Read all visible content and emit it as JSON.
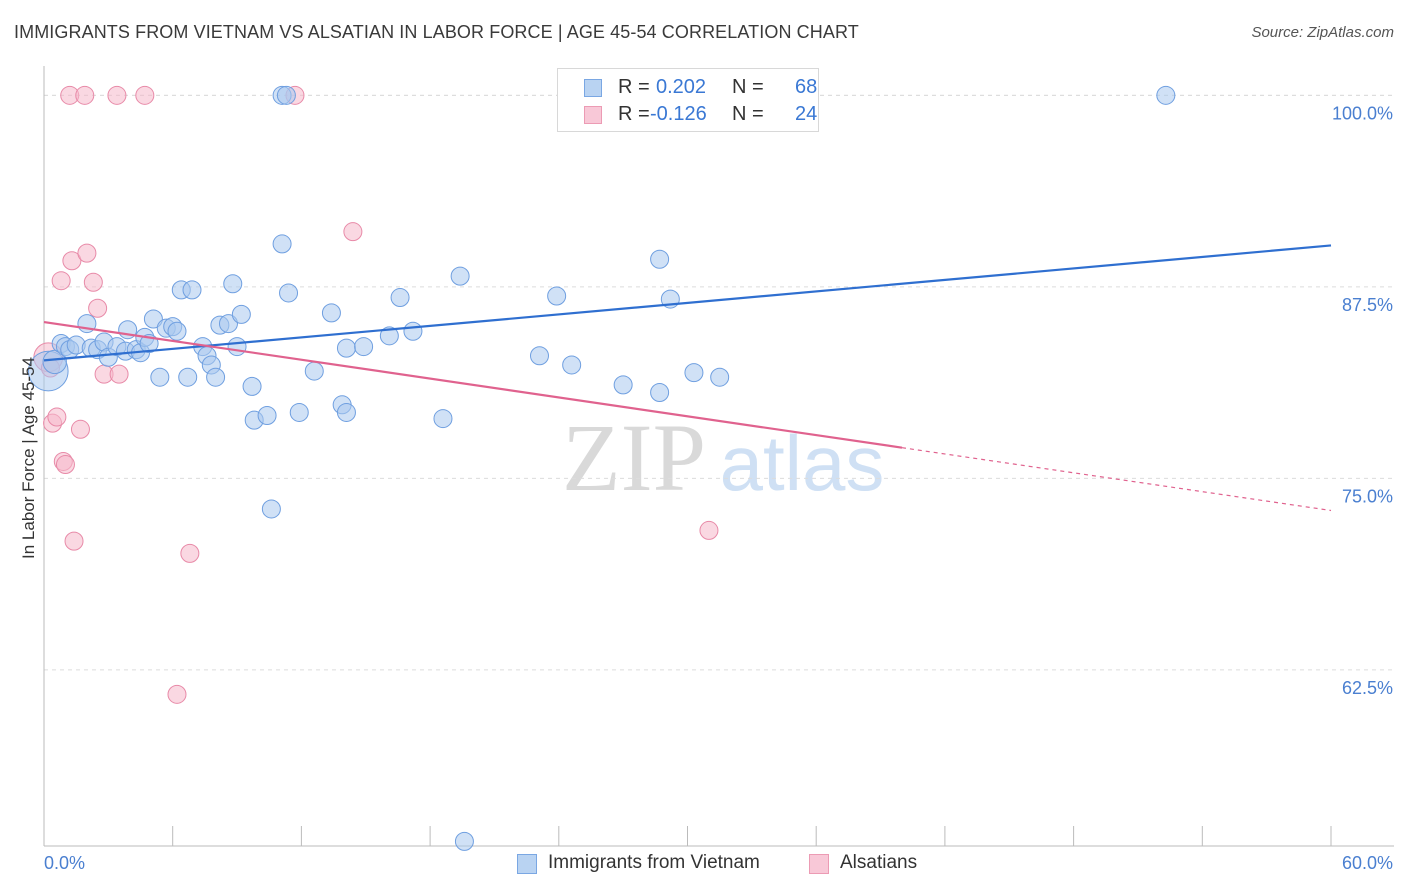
{
  "header": {
    "title": "IMMIGRANTS FROM VIETNAM VS ALSATIAN IN LABOR FORCE | AGE 45-54 CORRELATION CHART",
    "source": "Source: ZipAtlas.com"
  },
  "legend": {
    "rows": [
      {
        "r_label": "R =",
        "r_value": "0.202",
        "n_label": "N =",
        "n_value": "68"
      },
      {
        "r_label": "R =",
        "r_value": "-0.126",
        "n_label": "N =",
        "n_value": "24"
      }
    ]
  },
  "watermark": {
    "zip": "ZIP",
    "atlas": "atlas"
  },
  "colors": {
    "blue_fill": "#a9c8ef",
    "blue_stroke": "#6f9fe0",
    "blue_line": "#2f6fd0",
    "pink_fill": "#f5b8cb",
    "pink_stroke": "#e88aa8",
    "pink_line": "#e0628e",
    "tick_text": "#4a7fd0",
    "grid": "#dcdcdc"
  },
  "chart_data": {
    "type": "scatter",
    "title": "IMMIGRANTS FROM VIETNAM VS ALSATIAN IN LABOR FORCE | AGE 45-54 CORRELATION CHART",
    "xlabel": "",
    "ylabel": "In Labor Force | Age 45-54",
    "xlim": [
      0,
      60
    ],
    "ylim": [
      51,
      101
    ],
    "x_tick_labels": [
      "0.0%",
      "60.0%"
    ],
    "y_ticks": [
      62.5,
      75.0,
      87.5,
      100.0
    ],
    "y_tick_labels": [
      "62.5%",
      "75.0%",
      "87.5%",
      "100.0%"
    ],
    "grid": "horizontal dashed",
    "legend_position": "top-center",
    "series": [
      {
        "name": "Immigrants from Vietnam",
        "color": "#a9c8ef",
        "trend": {
          "x0": 0,
          "y0": 82.7,
          "x1": 60,
          "y1": 90.2,
          "dashed_from": null
        },
        "points": [
          [
            0.2,
            82.0,
            2.2
          ],
          [
            0.5,
            82.6,
            1.3
          ],
          [
            0.8,
            83.8,
            1
          ],
          [
            1.0,
            83.6,
            1
          ],
          [
            1.2,
            83.4,
            1
          ],
          [
            1.5,
            83.7,
            1
          ],
          [
            2.0,
            85.1,
            1
          ],
          [
            2.2,
            83.5,
            1
          ],
          [
            2.5,
            83.4,
            1
          ],
          [
            2.8,
            83.9,
            1
          ],
          [
            3.0,
            82.9,
            1
          ],
          [
            3.4,
            83.6,
            1
          ],
          [
            3.8,
            83.3,
            1
          ],
          [
            3.9,
            84.7,
            1
          ],
          [
            4.3,
            83.4,
            1
          ],
          [
            4.5,
            83.2,
            1
          ],
          [
            4.7,
            84.2,
            1
          ],
          [
            4.9,
            83.8,
            1
          ],
          [
            5.1,
            85.4,
            1
          ],
          [
            5.4,
            81.6,
            1
          ],
          [
            5.7,
            84.8,
            1
          ],
          [
            6.0,
            84.9,
            1
          ],
          [
            6.2,
            84.6,
            1
          ],
          [
            6.4,
            87.3,
            1
          ],
          [
            6.7,
            81.6,
            1
          ],
          [
            6.9,
            87.3,
            1
          ],
          [
            7.4,
            83.6,
            1
          ],
          [
            7.6,
            83.0,
            1
          ],
          [
            7.8,
            82.4,
            1
          ],
          [
            8.0,
            81.6,
            1
          ],
          [
            8.2,
            85.0,
            1
          ],
          [
            8.6,
            85.1,
            1
          ],
          [
            8.8,
            87.7,
            1
          ],
          [
            9.0,
            83.6,
            1
          ],
          [
            9.2,
            85.7,
            1
          ],
          [
            9.7,
            81.0,
            1
          ],
          [
            9.8,
            78.8,
            1
          ],
          [
            10.4,
            79.1,
            1
          ],
          [
            10.6,
            73.0,
            1
          ],
          [
            11.1,
            90.3,
            1
          ],
          [
            11.4,
            87.1,
            1
          ],
          [
            11.9,
            79.3,
            1
          ],
          [
            12.6,
            82.0,
            1
          ],
          [
            13.4,
            85.8,
            1
          ],
          [
            13.9,
            79.8,
            1
          ],
          [
            14.1,
            79.3,
            1
          ],
          [
            14.1,
            83.5,
            1
          ],
          [
            14.9,
            83.6,
            1
          ],
          [
            16.1,
            84.3,
            1
          ],
          [
            16.6,
            86.8,
            1
          ],
          [
            17.2,
            84.6,
            1
          ],
          [
            18.6,
            78.9,
            1
          ],
          [
            19.4,
            88.2,
            1
          ],
          [
            19.6,
            51.3,
            1
          ],
          [
            23.1,
            83.0,
            1
          ],
          [
            23.9,
            86.9,
            1
          ],
          [
            24.6,
            82.4,
            1
          ],
          [
            25.1,
            100.0,
            1
          ],
          [
            25.4,
            100.0,
            1
          ],
          [
            27.0,
            81.1,
            1
          ],
          [
            28.7,
            80.6,
            1
          ],
          [
            28.7,
            89.3,
            1
          ],
          [
            29.2,
            86.7,
            1
          ],
          [
            30.3,
            81.9,
            1
          ],
          [
            31.5,
            81.6,
            1
          ],
          [
            52.3,
            100.0,
            1
          ],
          [
            11.1,
            100.0,
            1
          ],
          [
            11.3,
            100.0,
            1
          ]
        ]
      },
      {
        "name": "Alsatians",
        "color": "#f5b8cb",
        "trend": {
          "x0": 0,
          "y0": 85.2,
          "x1": 60,
          "y1": 72.9,
          "dashed_from": 40
        },
        "points": [
          [
            0.2,
            82.9,
            1.6
          ],
          [
            0.4,
            78.6,
            1
          ],
          [
            0.6,
            79.0,
            1
          ],
          [
            0.8,
            87.9,
            1
          ],
          [
            0.9,
            76.1,
            1
          ],
          [
            1.0,
            75.9,
            1
          ],
          [
            1.3,
            89.2,
            1
          ],
          [
            1.4,
            70.9,
            1
          ],
          [
            1.7,
            78.2,
            1
          ],
          [
            2.0,
            89.7,
            1
          ],
          [
            2.3,
            87.8,
            1
          ],
          [
            2.5,
            86.1,
            1
          ],
          [
            2.8,
            81.8,
            1
          ],
          [
            3.5,
            81.8,
            1
          ],
          [
            1.2,
            100.0,
            1
          ],
          [
            1.9,
            100.0,
            1
          ],
          [
            3.4,
            100.0,
            1
          ],
          [
            4.7,
            100.0,
            1
          ],
          [
            6.2,
            60.9,
            1
          ],
          [
            6.8,
            70.1,
            1
          ],
          [
            11.7,
            100.0,
            1
          ],
          [
            14.4,
            91.1,
            1
          ],
          [
            31.0,
            71.6,
            1
          ],
          [
            0.3,
            82.2,
            1
          ]
        ]
      }
    ]
  },
  "bottom_legend": {
    "items": [
      {
        "label": "Immigrants from Vietnam"
      },
      {
        "label": "Alsatians"
      }
    ]
  }
}
